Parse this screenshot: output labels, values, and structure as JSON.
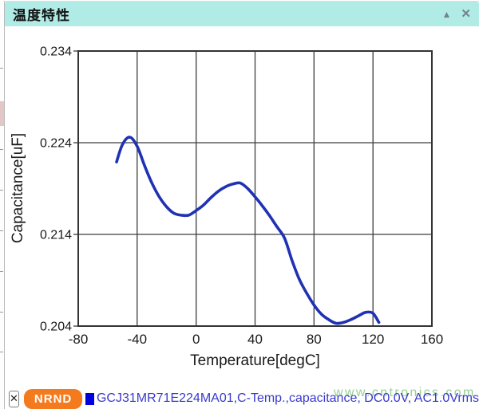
{
  "window": {
    "title": "温度特性",
    "collapse_icon": "▲",
    "close_icon": "✕"
  },
  "legend": {
    "remove_label": "✕",
    "badge": "NRND",
    "badge_color": "#f47a1e",
    "swatch_color": "#0000dd",
    "text_color": "#3a3acc",
    "series_label": "GCJ31MR71E224MA01,C-Temp.,capacitance, DC0.0V, AC1.0Vrms"
  },
  "watermark": {
    "text": "www.cntronics.com",
    "color": "#7cc47c"
  },
  "colors": {
    "header_bg": "#b0ebe5",
    "grid": "#3c3c3c",
    "frame": "#333333",
    "tick_text": "#1a1a1a"
  },
  "chart_data": {
    "type": "line",
    "title": "",
    "xlabel": "Temperature[degC]",
    "ylabel": "Capacitance[uF]",
    "xlim": [
      -80,
      160
    ],
    "ylim": [
      0.204,
      0.234
    ],
    "xticks": [
      -80,
      -40,
      0,
      40,
      80,
      120,
      160
    ],
    "yticks": [
      0.204,
      0.214,
      0.224,
      0.234
    ],
    "grid": true,
    "legend_position": "bottom",
    "series": [
      {
        "name": "GCJ31MR71E224MA01,C-Temp.,capacitance, DC0.0V, AC1.0Vrms",
        "color": "#2032b4",
        "x": [
          -54,
          -50,
          -45,
          -40,
          -35,
          -30,
          -25,
          -20,
          -15,
          -10,
          -5,
          0,
          5,
          10,
          15,
          20,
          25,
          30,
          35,
          40,
          45,
          50,
          55,
          60,
          65,
          70,
          75,
          80,
          85,
          90,
          95,
          100,
          105,
          110,
          115,
          120,
          124
        ],
        "y": [
          0.2219,
          0.2238,
          0.2246,
          0.2236,
          0.2215,
          0.2196,
          0.2181,
          0.217,
          0.2163,
          0.2161,
          0.2161,
          0.2166,
          0.2172,
          0.218,
          0.2187,
          0.2192,
          0.2195,
          0.2196,
          0.219,
          0.2181,
          0.2171,
          0.216,
          0.2148,
          0.2136,
          0.2112,
          0.2091,
          0.2076,
          0.2063,
          0.2053,
          0.2047,
          0.2043,
          0.2044,
          0.2047,
          0.2051,
          0.2055,
          0.2054,
          0.2044
        ]
      }
    ]
  }
}
